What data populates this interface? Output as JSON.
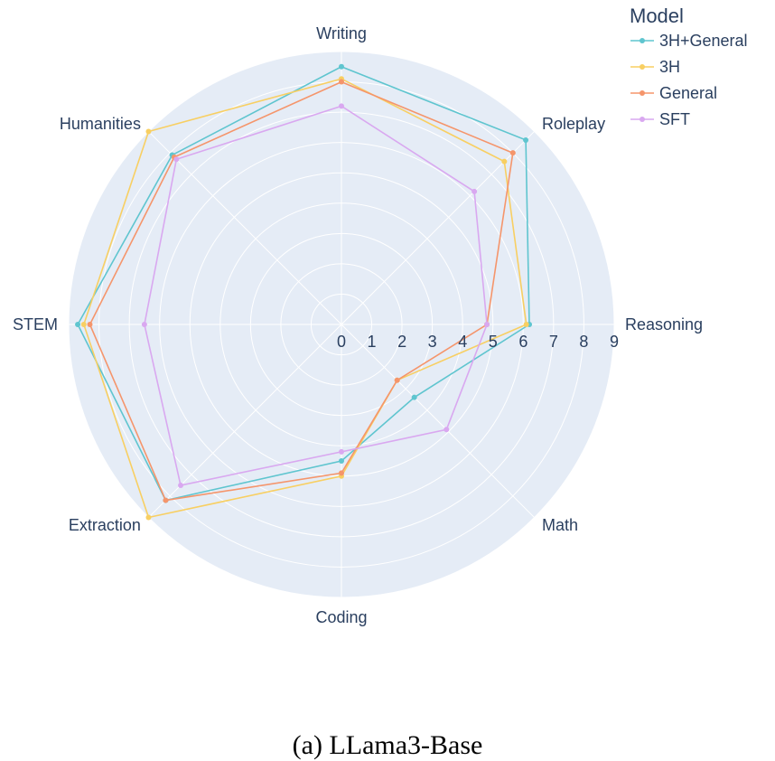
{
  "chart_data": {
    "type": "radar",
    "axes": [
      "Writing",
      "Roleplay",
      "Reasoning",
      "Math",
      "Coding",
      "Extraction",
      "STEM",
      "Humanities"
    ],
    "rmax": 9,
    "radial_ticks": [
      "0",
      "1",
      "2",
      "3",
      "4",
      "5",
      "6",
      "7",
      "8",
      "9"
    ],
    "legend_title": "Model",
    "series": [
      {
        "name": "3H+General",
        "color": "#5fc5cf",
        "values": [
          8.5,
          8.6,
          6.2,
          3.4,
          4.5,
          8.2,
          8.7,
          7.9
        ]
      },
      {
        "name": "3H",
        "color": "#f8cf62",
        "values": [
          8.1,
          7.6,
          6.1,
          2.6,
          5.0,
          9.0,
          8.5,
          9.0
        ]
      },
      {
        "name": "General",
        "color": "#f5956b",
        "values": [
          8.0,
          8.0,
          4.8,
          2.6,
          4.9,
          8.2,
          8.3,
          7.8
        ]
      },
      {
        "name": "SFT",
        "color": "#d9a8f0",
        "values": [
          7.2,
          6.2,
          4.8,
          4.9,
          4.2,
          7.5,
          6.5,
          7.7
        ]
      }
    ]
  },
  "caption": "(a) LLama3-Base"
}
